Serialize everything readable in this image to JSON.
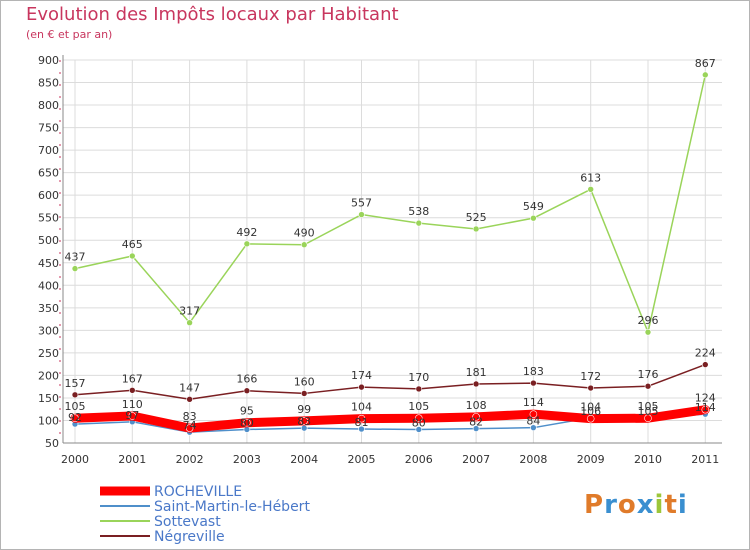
{
  "title": "Evolution des Impôts locaux par Habitant",
  "subtitle": "(en € et par an)",
  "logo": [
    "P",
    "r",
    "o",
    "x",
    "i",
    "t",
    "i"
  ],
  "logo_colors": [
    "#e07b2a",
    "#3a8fd0",
    "#e07b2a",
    "#3a8fd0",
    "#9cc63a",
    "#e07b2a",
    "#3a8fd0"
  ],
  "chart_data": {
    "type": "line",
    "x": [
      "2000",
      "2001",
      "2002",
      "2003",
      "2004",
      "2005",
      "2006",
      "2007",
      "2008",
      "2009",
      "2010",
      "2011"
    ],
    "y_ticks": [
      50,
      100,
      150,
      200,
      250,
      300,
      350,
      400,
      450,
      500,
      550,
      600,
      650,
      700,
      750,
      800,
      850,
      900
    ],
    "ylim": [
      50,
      900
    ],
    "grid": true,
    "legend_position": "bottom-left",
    "series": [
      {
        "name": "ROCHEVILLE",
        "color": "#ff0000",
        "values": [
          105,
          110,
          83,
          95,
          99,
          104,
          105,
          108,
          114,
          104,
          105,
          124
        ],
        "labels": [
          "105",
          "110",
          "83",
          "95",
          "99",
          "104",
          "105",
          "108",
          "114",
          "104",
          "105",
          "124"
        ]
      },
      {
        "name": "Saint-Martin-le-Hébert",
        "color": "#4f8fca",
        "values": [
          92,
          97,
          74,
          80,
          83,
          81,
          80,
          82,
          84,
          106,
          105,
          114
        ],
        "labels": [
          "92",
          "97",
          "74",
          "80",
          "83",
          "81",
          "80",
          "82",
          "84",
          "106",
          "105",
          "114"
        ]
      },
      {
        "name": "Sottevast",
        "color": "#9ad45a",
        "values": [
          437,
          465,
          317,
          492,
          490,
          557,
          538,
          525,
          549,
          613,
          296,
          867
        ],
        "labels": [
          "437",
          "465",
          "317",
          "492",
          "490",
          "557",
          "538",
          "525",
          "549",
          "613",
          "296",
          "867"
        ]
      },
      {
        "name": "Négreville",
        "color": "#7a1f22",
        "values": [
          157,
          167,
          147,
          166,
          160,
          174,
          170,
          181,
          183,
          172,
          176,
          224
        ],
        "labels": [
          "157",
          "167",
          "147",
          "166",
          "160",
          "174",
          "170",
          "181",
          "183",
          "172",
          "176",
          "224"
        ]
      }
    ]
  }
}
